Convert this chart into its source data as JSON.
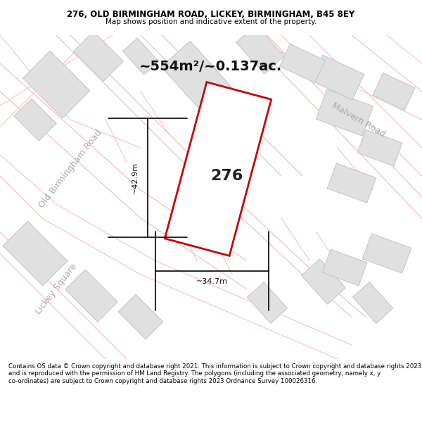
{
  "title_line1": "276, OLD BIRMINGHAM ROAD, LICKEY, BIRMINGHAM, B45 8EY",
  "title_line2": "Map shows position and indicative extent of the property.",
  "area_text": "~554m²/~0.137ac.",
  "property_number": "276",
  "dim_height": "~42.9m",
  "dim_width": "~34.7m",
  "road_label1": "Old Birmingham Road",
  "road_label2": "Malvern Road",
  "road_label3": "Lickey Square",
  "footer_text": "Contains OS data © Crown copyright and database right 2021. This information is subject to Crown copyright and database rights 2023 and is reproduced with the permission of HM Land Registry. The polygons (including the associated geometry, namely x, y co-ordinates) are subject to Crown copyright and database rights 2023 Ordnance Survey 100026316.",
  "bg_color": "#f5f0f0",
  "map_bg": "#f5f0f0",
  "title_bg": "#ffffff",
  "footer_bg": "#ffffff",
  "property_fill": "#ffffff",
  "property_edge": "#cc0000",
  "neighbor_fill": "#e0e0e0",
  "neighbor_edge": "#c8c8c8",
  "road_line_color": "#f5b8b8",
  "dim_line_color": "#000000"
}
